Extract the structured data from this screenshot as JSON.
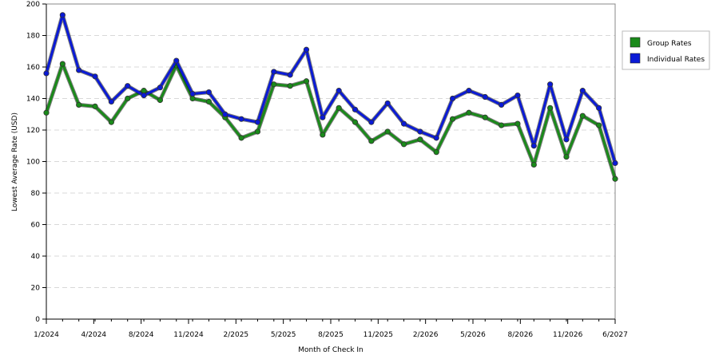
{
  "chart_data": {
    "type": "line",
    "xlabel": "Month of Check In",
    "ylabel": "Lowest Average Rate (USD)",
    "ylim": [
      0,
      200
    ],
    "yticks": [
      0,
      20,
      40,
      60,
      80,
      100,
      120,
      140,
      160,
      180,
      200
    ],
    "x_months": [
      "1/2024",
      "2/2024",
      "3/2024",
      "4/2024",
      "5/2024",
      "6/2024",
      "7/2024",
      "8/2024",
      "9/2024",
      "10/2024",
      "11/2024",
      "12/2024",
      "1/2025",
      "2/2025",
      "3/2025",
      "4/2025",
      "5/2025",
      "6/2025",
      "7/2025",
      "8/2025",
      "9/2025",
      "10/2025",
      "11/2025",
      "12/2025",
      "1/2026",
      "2/2026",
      "3/2026",
      "4/2026",
      "5/2026",
      "6/2026",
      "7/2026",
      "8/2026",
      "9/2026",
      "10/2026",
      "11/2026",
      "12/2026",
      "6/2027"
    ],
    "xtick_labels": [
      "1/2024",
      "4/2024",
      "8/2024",
      "11/2024",
      "2/2025",
      "5/2025",
      "8/2025",
      "11/2025",
      "2/2026",
      "5/2026",
      "8/2026",
      "11/2026",
      "6/2027"
    ],
    "grid": true,
    "legend_position": "right",
    "series": [
      {
        "name": "Group Rates",
        "color": "#1a8a1a",
        "values": [
          131,
          162,
          136,
          135,
          125,
          140,
          145,
          139,
          161,
          140,
          138,
          128,
          115,
          119,
          149,
          148,
          151,
          117,
          134,
          125,
          113,
          119,
          111,
          114,
          106,
          127,
          131,
          128,
          123,
          124,
          98,
          134,
          103,
          129,
          123,
          89
        ]
      },
      {
        "name": "Individual Rates",
        "color": "#0a1ad6",
        "values": [
          156,
          193,
          158,
          154,
          138,
          148,
          142,
          147,
          164,
          143,
          144,
          130,
          127,
          125,
          157,
          155,
          171,
          128,
          145,
          133,
          125,
          137,
          124,
          119,
          115,
          140,
          145,
          141,
          136,
          142,
          110,
          149,
          114,
          145,
          134,
          99
        ]
      }
    ]
  }
}
